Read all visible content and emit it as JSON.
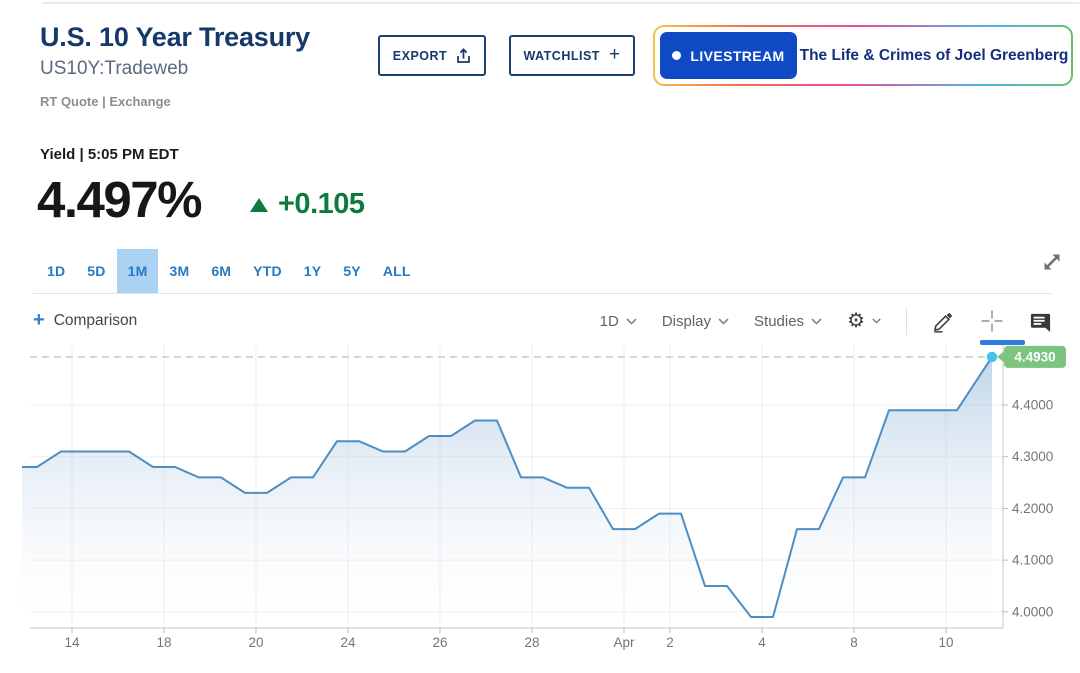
{
  "header": {
    "title": "U.S. 10 Year Treasury",
    "symbol": "US10Y:Tradeweb",
    "quote_type": "RT Quote | Exchange",
    "export_label": "EXPORT",
    "watchlist_label": "WATCHLIST",
    "watchlist_plus": "+",
    "livestream": {
      "badge_label": "LIVESTREAM",
      "show_title": "The Life & Crimes of Joel Greenberg",
      "badge_color": "#0f4ac4"
    }
  },
  "quote": {
    "label": "Yield | 5:05 PM EDT",
    "value": "4.497%",
    "change": "+0.105",
    "direction": "up",
    "change_color": "#0d7a3e"
  },
  "ranges": {
    "items": [
      "1D",
      "5D",
      "1M",
      "3M",
      "6M",
      "YTD",
      "1Y",
      "5Y",
      "ALL"
    ],
    "selected": "1M",
    "selected_index": 2,
    "link_color": "#2679c2",
    "selected_bg": "#a9d2f3"
  },
  "toolbar": {
    "comparison_plus": "+",
    "comparison_label": "Comparison",
    "interval_label": "1D",
    "display_label": "Display",
    "studies_label": "Studies",
    "gear_glyph": "⚙",
    "active_tool": "crosshair",
    "active_tool_color": "#2f7ce0"
  },
  "icons": {
    "export": "upload-arrow",
    "watchlist": "plus",
    "livestream": "dot",
    "change": "triangle-up",
    "comparison": "plus",
    "dropdowns": "chevron-down",
    "settings": "gear",
    "draw": "pencil",
    "crosshair": "crosshair",
    "comments": "speech-bubble-lines",
    "expand": "diagonal-resize-arrows"
  },
  "chart_data": {
    "type": "area",
    "title": "U.S. 10 Year Treasury yield, 1 month",
    "xlabel": "",
    "ylabel": "",
    "x": [
      "Mar 13",
      "Mar 14",
      "Mar 17",
      "Mar 18",
      "Mar 19",
      "Mar 20",
      "Mar 21",
      "Mar 24",
      "Mar 25",
      "Mar 26",
      "Mar 27",
      "Mar 28",
      "Mar 31",
      "Apr 1",
      "Apr 2",
      "Apr 3",
      "Apr 4",
      "Apr 7",
      "Apr 8",
      "Apr 9",
      "Apr 10",
      "Apr 11"
    ],
    "values": [
      4.28,
      4.31,
      4.31,
      4.28,
      4.26,
      4.23,
      4.26,
      4.33,
      4.31,
      4.34,
      4.37,
      4.26,
      4.24,
      4.16,
      4.19,
      4.05,
      3.99,
      4.16,
      4.26,
      4.39,
      4.39,
      4.493
    ],
    "x_tick_labels": [
      "14",
      "18",
      "20",
      "24",
      "26",
      "28",
      "Apr",
      "2",
      "4",
      "8",
      "10"
    ],
    "x_tick_indices": [
      1,
      3,
      5,
      7,
      9,
      11,
      13,
      14,
      16,
      18,
      20
    ],
    "y_tick_labels": [
      "4.4000",
      "4.3000",
      "4.2000",
      "4.1000",
      "4.0000"
    ],
    "y_tick_values": [
      4.4,
      4.3,
      4.2,
      4.1,
      4.0
    ],
    "ylim": [
      3.95,
      4.52
    ],
    "grid": true,
    "legend": "none",
    "last_value": 4.493,
    "last_price_label": "4.4930",
    "line_color": "#4d8ec5",
    "fill_top_color": "#86add3",
    "dashed_line_color": "#b9dcba",
    "last_dot_color": "#49c0ee",
    "badge_color": "#7cc480",
    "axis_text_color": "#757575"
  }
}
